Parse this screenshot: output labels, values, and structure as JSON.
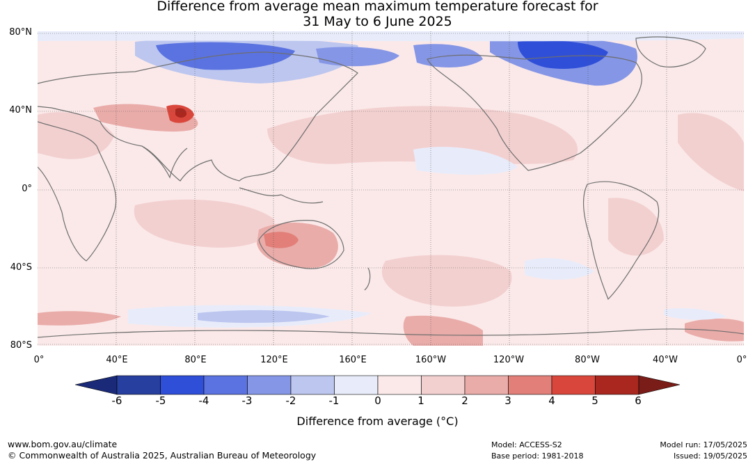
{
  "title": {
    "line1": "Difference from average mean maximum temperature forecast for",
    "line2": "31 May to 6 June 2025"
  },
  "map": {
    "projection": "equirectangular",
    "lon_range": "0° to 360° (Pacific-centred)",
    "lat_range": "80°S to 80°N",
    "gridlines": true,
    "lat_labels": [
      "80°N",
      "40°N",
      "0°",
      "40°S",
      "80°S"
    ],
    "lon_labels": [
      "0°",
      "40°E",
      "80°E",
      "120°E",
      "160°E",
      "160°W",
      "120°W",
      "80°W",
      "40°W",
      "0°"
    ]
  },
  "colorbar": {
    "title": "Difference from average (°C)",
    "ticks": [
      "-6",
      "-5",
      "-4",
      "-3",
      "-2",
      "-1",
      "0",
      "1",
      "2",
      "3",
      "4",
      "5",
      "6"
    ],
    "colors": [
      "#273f9f",
      "#2f4fd8",
      "#5b73e0",
      "#8596e6",
      "#bcc6ef",
      "#e8ecfa",
      "#fbe9e9",
      "#f3d0d0",
      "#e9aca9",
      "#e27f79",
      "#d9473c",
      "#a9271f"
    ],
    "extend_low_color": "#1a2a78",
    "extend_high_color": "#7a1c17"
  },
  "footer": {
    "website": "www.bom.gov.au/climate",
    "copyright": "© Commonwealth of Australia 2025, Australian Bureau of Meteorology",
    "model": "Model: ACCESS-S2",
    "base_period": "Base period: 1981-2018",
    "model_run": "Model run: 17/05/2025",
    "issued": "Issued: 19/05/2025"
  }
}
